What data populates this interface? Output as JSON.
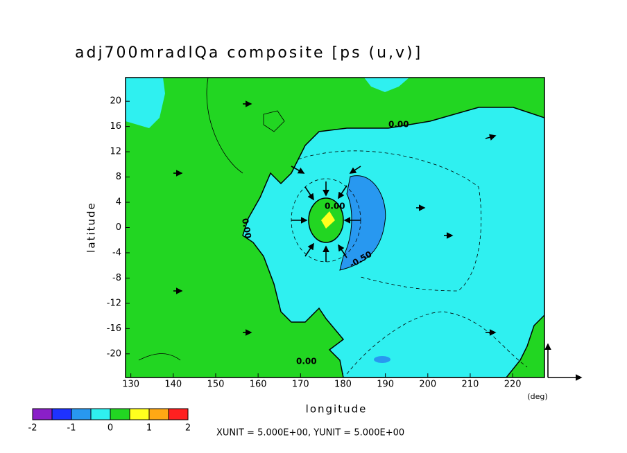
{
  "chart_data": {
    "type": "contour",
    "title": "adj700mradlQa composite [ps (u,v)]",
    "x_label": "longitude",
    "y_label": "latitude",
    "x_unit": "(deg)",
    "vector_note": "XUNIT = 5.000E+00, YUNIT = 5.000E+00",
    "xlim": [
      128.75,
      227.5
    ],
    "ylim": [
      -23.75,
      23.75
    ],
    "xticks": [
      130,
      140,
      150,
      160,
      170,
      180,
      190,
      200,
      210,
      220
    ],
    "yticks": [
      -20,
      -16,
      -12,
      -8,
      -4,
      0,
      4,
      8,
      12,
      16,
      20
    ],
    "contour_labels": [
      "0.00",
      "0.00",
      "-0.50",
      "0.00",
      "0.00"
    ],
    "colorbar": {
      "levels": [
        -2,
        -1.5,
        -1,
        -0.5,
        0,
        0.5,
        1,
        1.5,
        2
      ],
      "colors": [
        "#8a1fc8",
        "#1e32ff",
        "#2898f0",
        "#2ff0f0",
        "#22d622",
        "#ffff1e",
        "#ffa814",
        "#ff2020"
      ],
      "ticks": [
        -2,
        -1,
        0,
        1,
        2
      ]
    }
  }
}
